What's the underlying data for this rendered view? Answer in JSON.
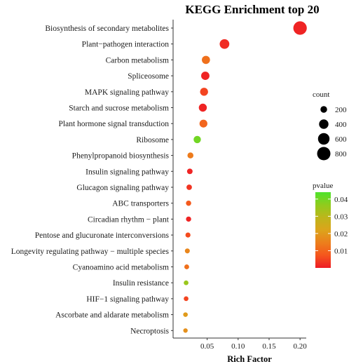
{
  "chart_data": {
    "type": "scatter",
    "title": "KEGG Enrichment top 20",
    "xlabel": "Rich Factor",
    "ylabel": "",
    "xlim": [
      -0.005,
      0.21
    ],
    "xticks": [
      0.05,
      0.1,
      0.15,
      0.2
    ],
    "xtick_labels": [
      "0.05",
      "0.10",
      "0.15",
      "0.20"
    ],
    "grid": false,
    "categories": [
      "Biosynthesis of secondary metabolites",
      "Plant−pathogen interaction",
      "Carbon metabolism",
      "Spliceosome",
      "MAPK signaling pathway",
      "Starch and sucrose metabolism",
      "Plant hormone signal transduction",
      "Ribosome",
      "Phenylpropanoid biosynthesis",
      "Insulin signaling pathway",
      "Glucagon signaling pathway",
      "ABC transporters",
      "Circadian rhythm − plant",
      "Pentose and glucuronate interconversions",
      "Longevity regulating pathway − multiple species",
      "Cyanoamino acid metabolism",
      "Insulin resistance",
      "HIF−1 signaling pathway",
      "Ascorbate and aldarate metabolism",
      "Necroptosis"
    ],
    "points": [
      {
        "rich_factor": 0.2,
        "count": 820,
        "pvalue": 0.001
      },
      {
        "rich_factor": 0.078,
        "count": 420,
        "pvalue": 0.002
      },
      {
        "rich_factor": 0.048,
        "count": 300,
        "pvalue": 0.012
      },
      {
        "rich_factor": 0.047,
        "count": 310,
        "pvalue": 0.001
      },
      {
        "rich_factor": 0.045,
        "count": 290,
        "pvalue": 0.005
      },
      {
        "rich_factor": 0.043,
        "count": 290,
        "pvalue": 0.001
      },
      {
        "rich_factor": 0.044,
        "count": 280,
        "pvalue": 0.01
      },
      {
        "rich_factor": 0.034,
        "count": 240,
        "pvalue": 0.04
      },
      {
        "rich_factor": 0.023,
        "count": 160,
        "pvalue": 0.014
      },
      {
        "rich_factor": 0.022,
        "count": 140,
        "pvalue": 0.001
      },
      {
        "rich_factor": 0.021,
        "count": 135,
        "pvalue": 0.003
      },
      {
        "rich_factor": 0.02,
        "count": 125,
        "pvalue": 0.008
      },
      {
        "rich_factor": 0.02,
        "count": 120,
        "pvalue": 0.001
      },
      {
        "rich_factor": 0.019,
        "count": 115,
        "pvalue": 0.006
      },
      {
        "rich_factor": 0.018,
        "count": 110,
        "pvalue": 0.016
      },
      {
        "rich_factor": 0.017,
        "count": 105,
        "pvalue": 0.012
      },
      {
        "rich_factor": 0.016,
        "count": 100,
        "pvalue": 0.035
      },
      {
        "rich_factor": 0.016,
        "count": 100,
        "pvalue": 0.005
      },
      {
        "rich_factor": 0.015,
        "count": 95,
        "pvalue": 0.02
      },
      {
        "rich_factor": 0.015,
        "count": 90,
        "pvalue": 0.018
      }
    ],
    "legend_placement": "right",
    "size_legend": {
      "title": "count",
      "values": [
        200,
        400,
        600,
        800
      ],
      "labels": [
        "200",
        "400",
        "600",
        "800"
      ]
    },
    "color_legend": {
      "title": "pvalue",
      "range": [
        0.0,
        0.044
      ],
      "ticks": [
        0.01,
        0.02,
        0.03,
        0.04
      ],
      "tick_labels": [
        "0.01",
        "0.02",
        "0.03",
        "0.04"
      ],
      "colors": [
        "#ee1c25",
        "#f5561d",
        "#ec7f1c",
        "#dca41b",
        "#bdb61b",
        "#90cc1d",
        "#4ee32d"
      ]
    }
  }
}
